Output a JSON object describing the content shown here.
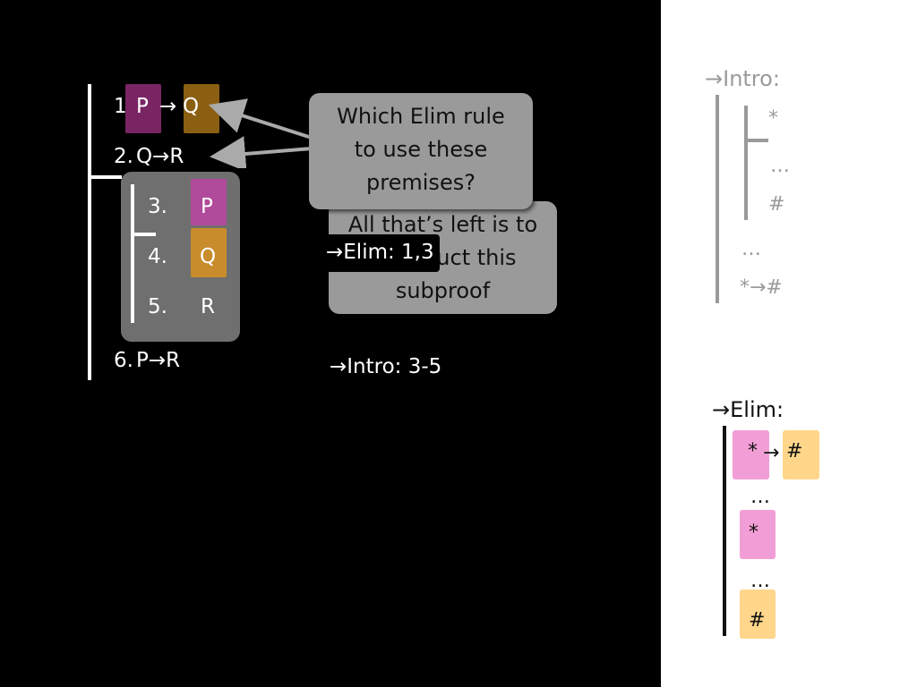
{
  "proof": {
    "line1": {
      "num": "1.",
      "left": "P",
      "arrow": "→",
      "right": "Q"
    },
    "line2": {
      "num": "2.",
      "text": "Q→R"
    },
    "subproof": {
      "line3": {
        "num": "3.",
        "value": "P"
      },
      "line4": {
        "num": "4.",
        "value": "Q"
      },
      "line5": {
        "num": "5.",
        "value": "R"
      }
    },
    "line6": {
      "num": "6.",
      "text": "P→R"
    }
  },
  "bubbles": {
    "question": "Which Elim rule to use these premises?",
    "left_text": "All that’s left is to construct this subproof"
  },
  "annotations": {
    "elim_label": "→Elim: 1,3",
    "intro_label": "→Intro: 3-5"
  },
  "rules": {
    "intro": {
      "title": "→Intro:",
      "star": "*",
      "dots1": "…",
      "hash": "#",
      "dots2": "…",
      "conclusion": "*→#"
    },
    "elim": {
      "title": "→Elim:",
      "star_left": "*",
      "arrow": "→",
      "hash_right": "#",
      "dots1": "…",
      "star": "*",
      "dots2": "…",
      "hash": "#"
    }
  },
  "colors": {
    "background": "#000000",
    "panel": "#ffffff",
    "bubble": "#9a9a9a",
    "subproof": "#6f6f6f",
    "hl_purple": "#7a2563",
    "hl_gold": "#8b5f12",
    "hl_pink": "#b04b9b",
    "hl_orange": "#c88c2c",
    "rule_pink": "#f29ed6",
    "rule_yellow": "#ffd68a"
  }
}
